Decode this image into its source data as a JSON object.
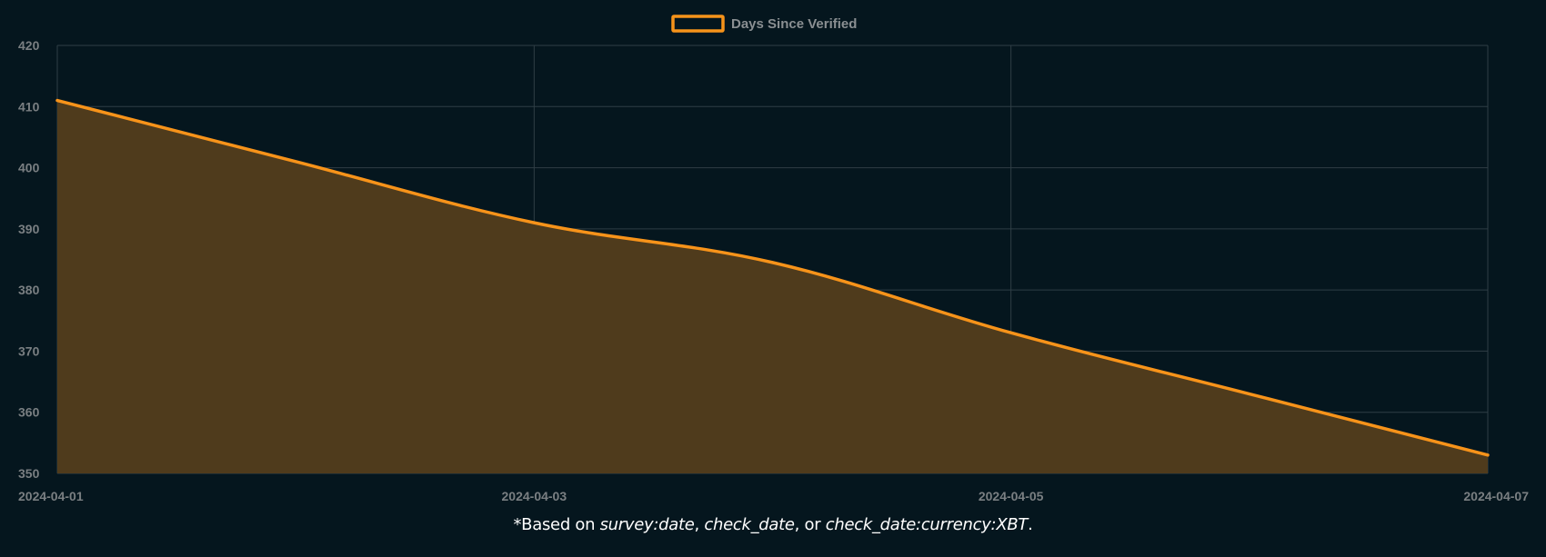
{
  "chart_data": {
    "type": "area",
    "title": "",
    "xlabel": "",
    "ylabel": "",
    "legend": {
      "position": "top-center",
      "entries": [
        {
          "name": "Days Since Verified",
          "color": "#f7931a"
        }
      ]
    },
    "x_ticks": [
      "2024-04-01",
      "2024-04-03",
      "2024-04-05",
      "2024-04-07"
    ],
    "y_ticks": [
      350,
      360,
      370,
      380,
      390,
      400,
      410,
      420
    ],
    "xlim": [
      "2024-04-01",
      "2024-04-07"
    ],
    "ylim": [
      350,
      420
    ],
    "grid": true,
    "series": [
      {
        "name": "Days Since Verified",
        "x": [
          "2024-04-01",
          "2024-04-02",
          "2024-04-03",
          "2024-04-04",
          "2024-04-05",
          "2024-04-06",
          "2024-04-07"
        ],
        "y": [
          411,
          401,
          391,
          384.5,
          373,
          363,
          353
        ]
      }
    ],
    "colors": {
      "line": "#f7931a",
      "fill": "#4f3b1c",
      "grid": "#2f3e45",
      "tick_text": "#7a7f82",
      "legend_text": "#8a8f92"
    }
  },
  "footnote": {
    "prefix": "*Based on ",
    "term1": "survey:date",
    "sep1": ", ",
    "term2": "check_date",
    "sep2": ", or ",
    "term3": "check_date:currency:XBT",
    "suffix": "."
  }
}
